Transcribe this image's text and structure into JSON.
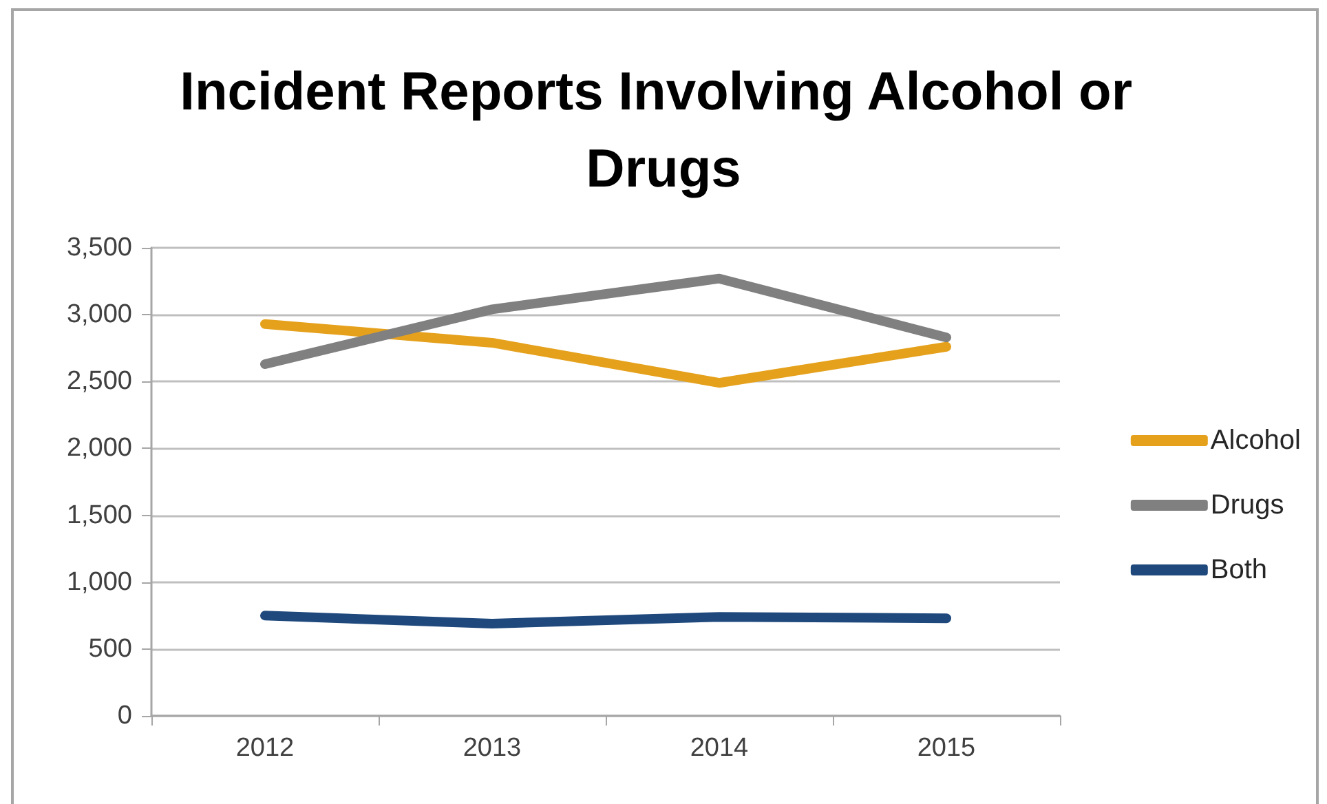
{
  "chart_data": {
    "type": "line",
    "title": "Incident Reports Involving Alcohol or Drugs",
    "categories": [
      "2012",
      "2013",
      "2014",
      "2015"
    ],
    "series": [
      {
        "name": "Alcohol",
        "color": "#e5a11c",
        "values": [
          2930,
          2790,
          2490,
          2760
        ]
      },
      {
        "name": "Drugs",
        "color": "#808080",
        "values": [
          2630,
          3040,
          3270,
          2830
        ]
      },
      {
        "name": "Both",
        "color": "#1f497d",
        "values": [
          750,
          690,
          740,
          730
        ]
      }
    ],
    "ylim": [
      0,
      3500
    ],
    "yticks": [
      0,
      500,
      {
        "value": 1000,
        "label": "1,000"
      },
      {
        "value": 1500,
        "label": "1,500"
      },
      {
        "value": 2000,
        "label": "2,000"
      },
      {
        "value": 2500,
        "label": "2,500"
      },
      {
        "value": 3000,
        "label": "3,000"
      },
      {
        "value": 3500,
        "label": "3,500"
      }
    ],
    "grid": "y",
    "legend": "right"
  }
}
